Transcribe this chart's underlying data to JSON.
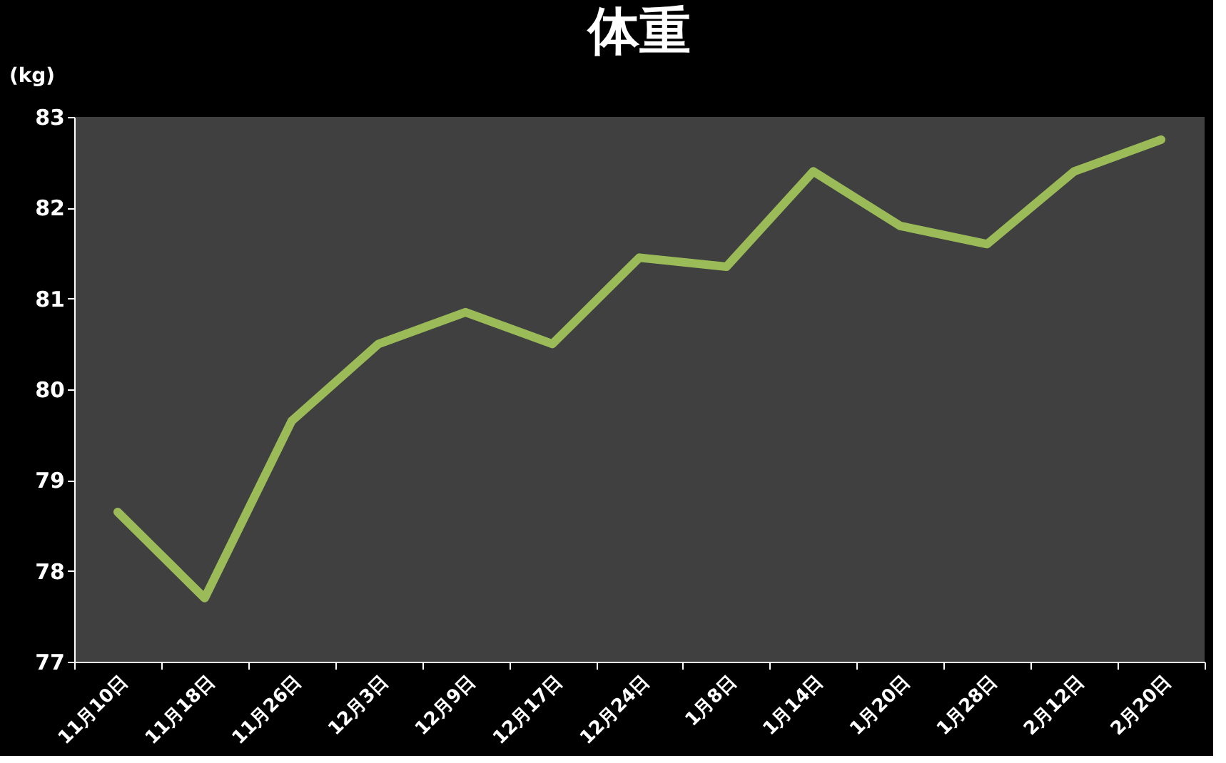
{
  "chart_data": {
    "type": "line",
    "title": "体重",
    "ylabel": "(kg)",
    "categories": [
      "11月10日",
      "11月18日",
      "11月26日",
      "12月3日",
      "12月9日",
      "12月17日",
      "12月24日",
      "1月8日",
      "1月14日",
      "1月20日",
      "1月28日",
      "2月12日",
      "2月20日"
    ],
    "series": [
      {
        "color": "#9bbb59",
        "values": [
          78.65,
          77.7,
          79.65,
          80.5,
          80.85,
          80.5,
          81.45,
          81.35,
          82.4,
          81.8,
          81.6,
          82.4,
          82.75
        ]
      }
    ],
    "ylim": [
      77,
      83
    ],
    "yticks": [
      77,
      78,
      79,
      80,
      81,
      82,
      83
    ],
    "grid": false,
    "marker": "none",
    "line_style": "solid"
  }
}
